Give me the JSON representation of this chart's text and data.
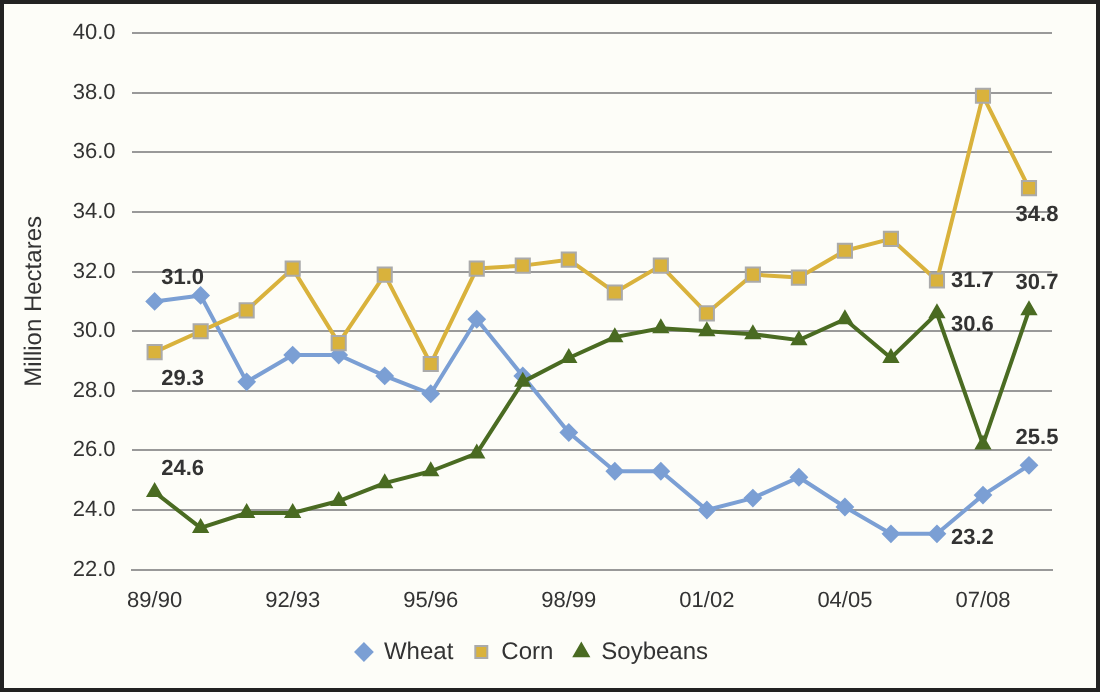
{
  "chart_data": {
    "type": "line",
    "ylabel": "Million Hectares",
    "categories": [
      "89/90",
      null,
      null,
      "92/93",
      null,
      null,
      "95/96",
      null,
      null,
      "98/99",
      null,
      null,
      "01/02",
      null,
      null,
      "04/05",
      null,
      null,
      "07/08",
      null
    ],
    "ylim": [
      22,
      40
    ],
    "yticks": [
      {
        "value": 22,
        "label": "22.0"
      },
      {
        "value": 24,
        "label": "24.0"
      },
      {
        "value": 26,
        "label": "26.0"
      },
      {
        "value": 28,
        "label": "28.0"
      },
      {
        "value": 30,
        "label": "30.0"
      },
      {
        "value": 32,
        "label": "32.0"
      },
      {
        "value": 34,
        "label": "34.0"
      },
      {
        "value": 36,
        "label": "36.0"
      },
      {
        "value": 38,
        "label": "38.0"
      },
      {
        "value": 40,
        "label": "40.0"
      }
    ],
    "grid": "y",
    "legend": "bottom",
    "series": [
      {
        "name": "Wheat",
        "color": "#7b9fd4",
        "marker": "diamond",
        "values": [
          31.0,
          31.2,
          28.3,
          29.2,
          29.2,
          28.5,
          27.9,
          30.4,
          28.5,
          26.6,
          25.3,
          25.3,
          24.0,
          24.4,
          25.1,
          24.1,
          23.2,
          23.2,
          24.5,
          25.5
        ],
        "value_labels": [
          "31.0",
          null,
          null,
          null,
          null,
          null,
          null,
          null,
          null,
          null,
          null,
          null,
          null,
          null,
          null,
          null,
          null,
          "23.2",
          null,
          "25.5"
        ]
      },
      {
        "name": "Corn",
        "color": "#d9b23c",
        "marker": "square",
        "values": [
          29.3,
          30.0,
          30.7,
          32.1,
          29.6,
          31.9,
          28.9,
          32.1,
          32.2,
          32.4,
          31.3,
          32.2,
          30.6,
          31.9,
          31.8,
          32.7,
          33.1,
          31.7,
          37.9,
          34.8
        ],
        "value_labels": [
          "29.3",
          null,
          null,
          null,
          null,
          null,
          null,
          null,
          null,
          null,
          null,
          null,
          null,
          null,
          null,
          null,
          null,
          "31.7",
          null,
          "34.8"
        ]
      },
      {
        "name": "Soybeans",
        "color": "#4a6b22",
        "marker": "triangle",
        "values": [
          24.6,
          23.4,
          23.9,
          23.9,
          24.3,
          24.9,
          25.3,
          25.9,
          28.3,
          29.1,
          29.8,
          30.1,
          30.0,
          29.9,
          29.7,
          30.4,
          29.1,
          30.6,
          26.2,
          30.7
        ],
        "value_labels": [
          "24.6",
          null,
          null,
          null,
          null,
          null,
          null,
          null,
          null,
          null,
          null,
          null,
          null,
          null,
          null,
          null,
          null,
          "30.6",
          null,
          "30.7"
        ]
      }
    ]
  }
}
